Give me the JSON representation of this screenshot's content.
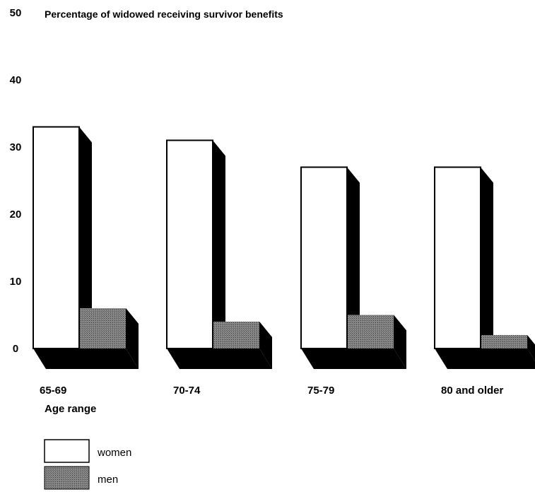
{
  "chart_data": {
    "type": "bar",
    "title": "Percentage of widowed receiving survivor benefits",
    "xlabel": "Age range",
    "ylabel": "",
    "categories": [
      "65-69",
      "70-74",
      "75-79",
      "80 and older"
    ],
    "series": [
      {
        "name": "women",
        "values": [
          33,
          31,
          27,
          27
        ],
        "color": "#ffffff"
      },
      {
        "name": "men",
        "values": [
          6,
          4,
          5,
          2
        ],
        "color": "#7a7a7a"
      }
    ],
    "yticks": [
      "0",
      "10",
      "20",
      "30",
      "40",
      "50"
    ],
    "ylim": [
      0,
      50
    ],
    "grid": false,
    "legend_position": "bottom-left",
    "style": "3d-bar"
  }
}
